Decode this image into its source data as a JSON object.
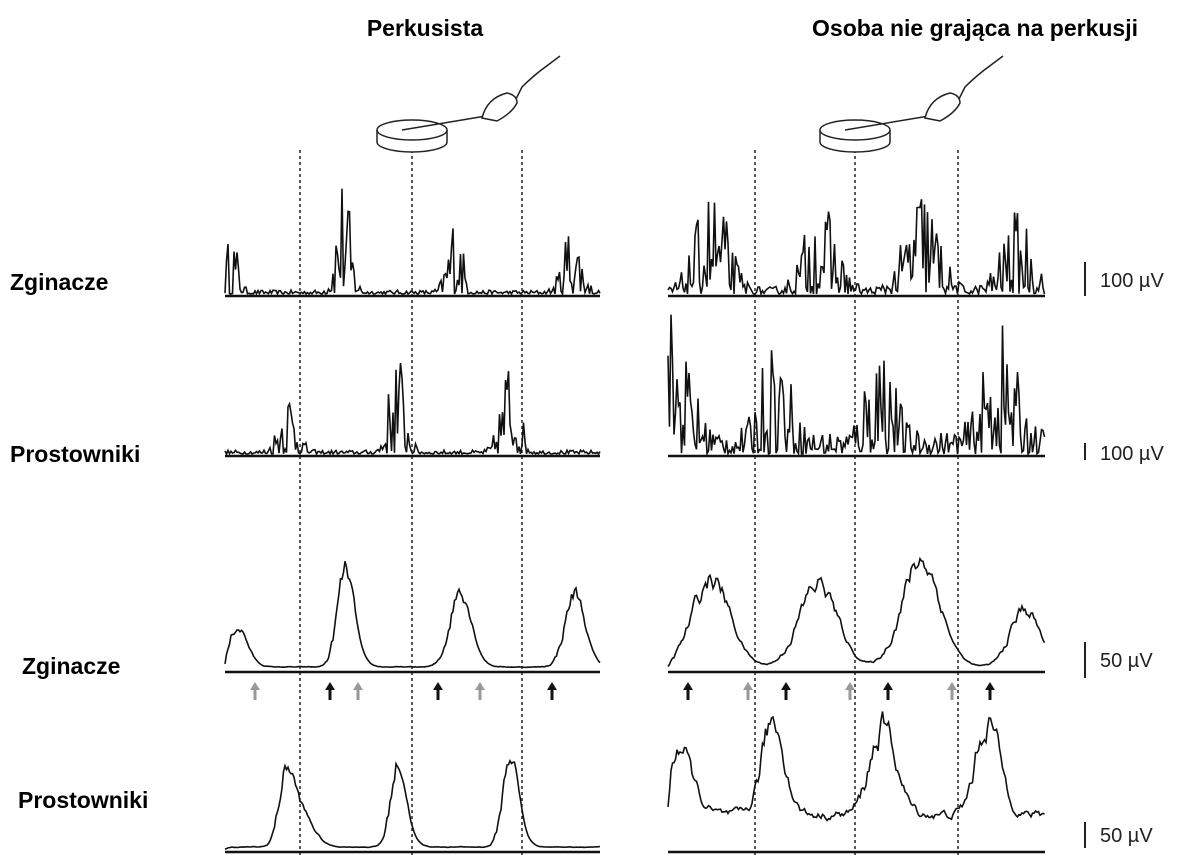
{
  "titles": [
    "Perkusista",
    "Osoba nie grająca na perkusji"
  ],
  "row_labels": [
    "Zginacze",
    "Prostowniki",
    "Zginacze",
    "Prostowniki"
  ],
  "scale_labels": [
    "100 µV",
    "100 µV",
    "50 µV",
    "50 µV"
  ]
}
